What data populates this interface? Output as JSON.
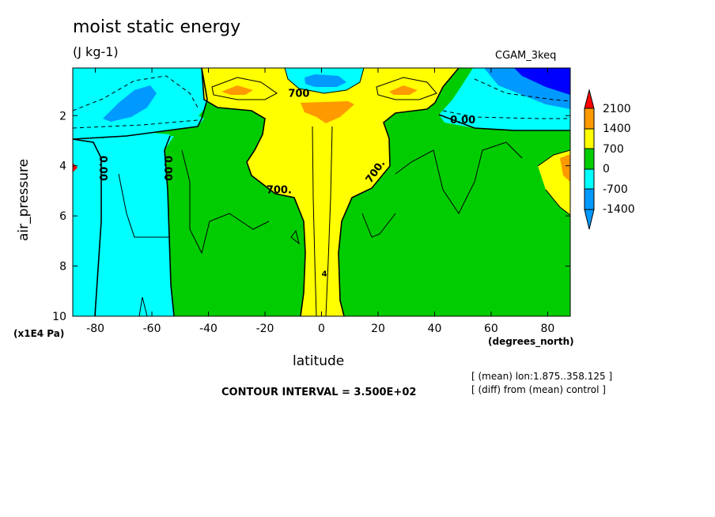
{
  "chart_data": {
    "type": "contour",
    "title": "moist static energy",
    "subtitle": "(J kg-1)",
    "experiment": "CGAM_3keq",
    "xlabel": "latitude",
    "xunits": "(degrees_north)",
    "ylabel": "air_pressure",
    "yunits": "(x1E4 Pa)",
    "xlim": [
      -88,
      88
    ],
    "ylim": [
      10,
      0.1
    ],
    "x_ticks": [
      -80,
      -60,
      -40,
      -20,
      0,
      20,
      40,
      60,
      80
    ],
    "x_tick_labels": [
      "-80",
      "-60",
      "-40",
      "-20",
      "0",
      "20",
      "40",
      "60",
      "80"
    ],
    "y_ticks": [
      2,
      4,
      6,
      8,
      10
    ],
    "y_tick_labels": [
      "2",
      "4",
      "6",
      "8",
      "10"
    ],
    "contour_interval": "CONTOUR INTERVAL = 3.500E+02",
    "notes": [
      "[ (mean) lon:1.875..358.125 ]",
      "[ (diff) from (mean) control ]"
    ],
    "colorbar": {
      "labels": [
        "2100",
        "1400",
        "700",
        "0",
        "-700",
        "-1400"
      ],
      "colors": [
        "#ff0000",
        "#ff9900",
        "#ffff00",
        "#00cc00",
        "#00ffff",
        "#0099ff",
        "#0000ff"
      ]
    },
    "contour_labels": [
      {
        "text": "700",
        "x": -8,
        "y": 1.25
      },
      {
        "text": "0.00",
        "x": 50,
        "y": 2.3
      },
      {
        "text": "0.00",
        "x": -78.5,
        "y": 4.1
      },
      {
        "text": "0.00",
        "x": -55.5,
        "y": 4.1
      },
      {
        "text": "700.",
        "x": -15,
        "y": 5.1
      },
      {
        "text": "700.",
        "x": 20,
        "y": 4.3
      },
      {
        "text": "4",
        "x": 1,
        "y": 8.4
      }
    ]
  }
}
